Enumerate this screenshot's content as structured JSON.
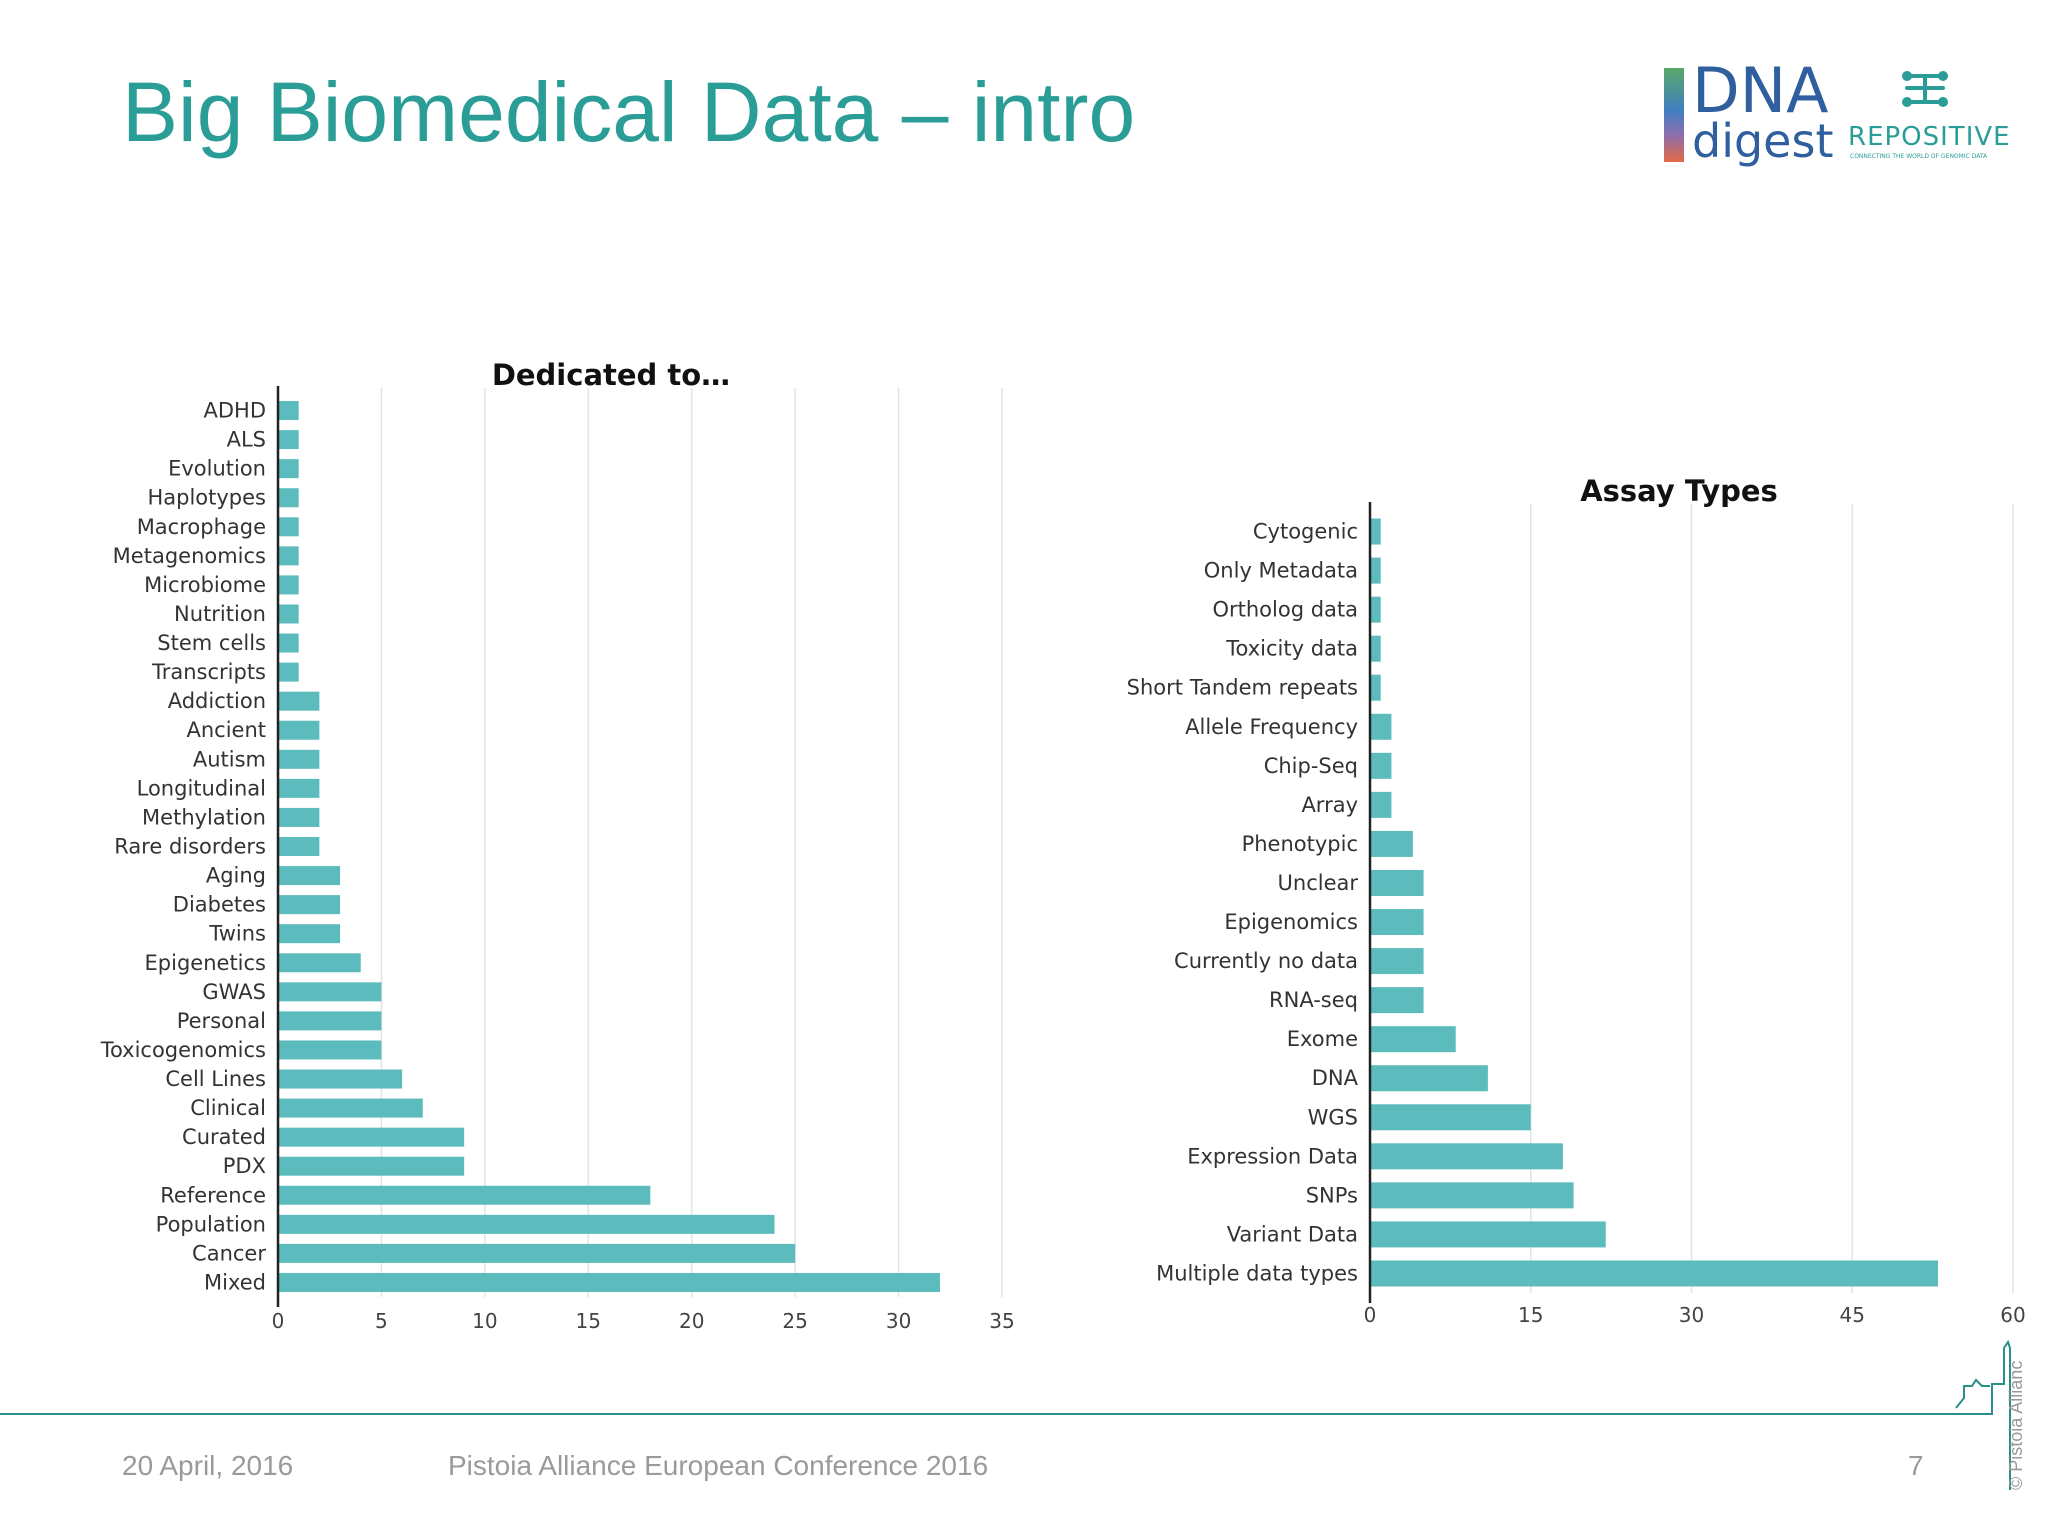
{
  "slide": {
    "title": "Big Biomedical Data – intro",
    "footer_date": "20 April, 2016",
    "footer_conference": "Pistoia Alliance European Conference 2016",
    "page_number": "7",
    "copyright": "© Pistoia Allianc"
  },
  "logos": {
    "dna_line1": "DNA",
    "dna_line2": "digest",
    "repositive_name": "REPOSITIVE",
    "repositive_tagline": "CONNECTING THE WORLD OF GENOMIC DATA"
  },
  "colors": {
    "accent": "#2a9d96",
    "bar": "#5cbcbd",
    "footer_line": "#2a8f8a"
  },
  "chart_data": [
    {
      "type": "bar",
      "orientation": "horizontal",
      "title": "Dedicated to…",
      "categories": [
        "ADHD",
        "ALS",
        "Evolution",
        "Haplotypes",
        "Macrophage",
        "Metagenomics",
        "Microbiome",
        "Nutrition",
        "Stem cells",
        "Transcripts",
        "Addiction",
        "Ancient",
        "Autism",
        "Longitudinal",
        "Methylation",
        "Rare disorders",
        "Aging",
        "Diabetes",
        "Twins",
        "Epigenetics",
        "GWAS",
        "Personal",
        "Toxicogenomics",
        "Cell Lines",
        "Clinical",
        "Curated",
        "PDX",
        "Reference",
        "Population",
        "Cancer",
        "Mixed"
      ],
      "values": [
        1,
        1,
        1,
        1,
        1,
        1,
        1,
        1,
        1,
        1,
        2,
        2,
        2,
        2,
        2,
        2,
        3,
        3,
        3,
        4,
        5,
        5,
        5,
        6,
        7,
        9,
        9,
        18,
        24,
        25,
        32
      ],
      "xlim": [
        0,
        35
      ],
      "xticks": [
        0,
        5,
        10,
        15,
        20,
        25,
        30,
        35
      ],
      "grid": true
    },
    {
      "type": "bar",
      "orientation": "horizontal",
      "title": "Assay Types",
      "categories": [
        "Cytogenic",
        "Only Metadata",
        "Ortholog data",
        "Toxicity data",
        "Short Tandem repeats",
        "Allele Frequency",
        "Chip-Seq",
        "Array",
        "Phenotypic",
        "Unclear",
        "Epigenomics",
        "Currently no data",
        "RNA-seq",
        "Exome",
        "DNA",
        "WGS",
        "Expression Data",
        "SNPs",
        "Variant Data",
        "Multiple data types"
      ],
      "values": [
        1,
        1,
        1,
        1,
        1,
        2,
        2,
        2,
        4,
        5,
        5,
        5,
        5,
        8,
        11,
        15,
        18,
        19,
        22,
        53
      ],
      "xlim": [
        0,
        60
      ],
      "xticks": [
        0,
        15,
        30,
        45,
        60
      ],
      "grid": true
    }
  ]
}
